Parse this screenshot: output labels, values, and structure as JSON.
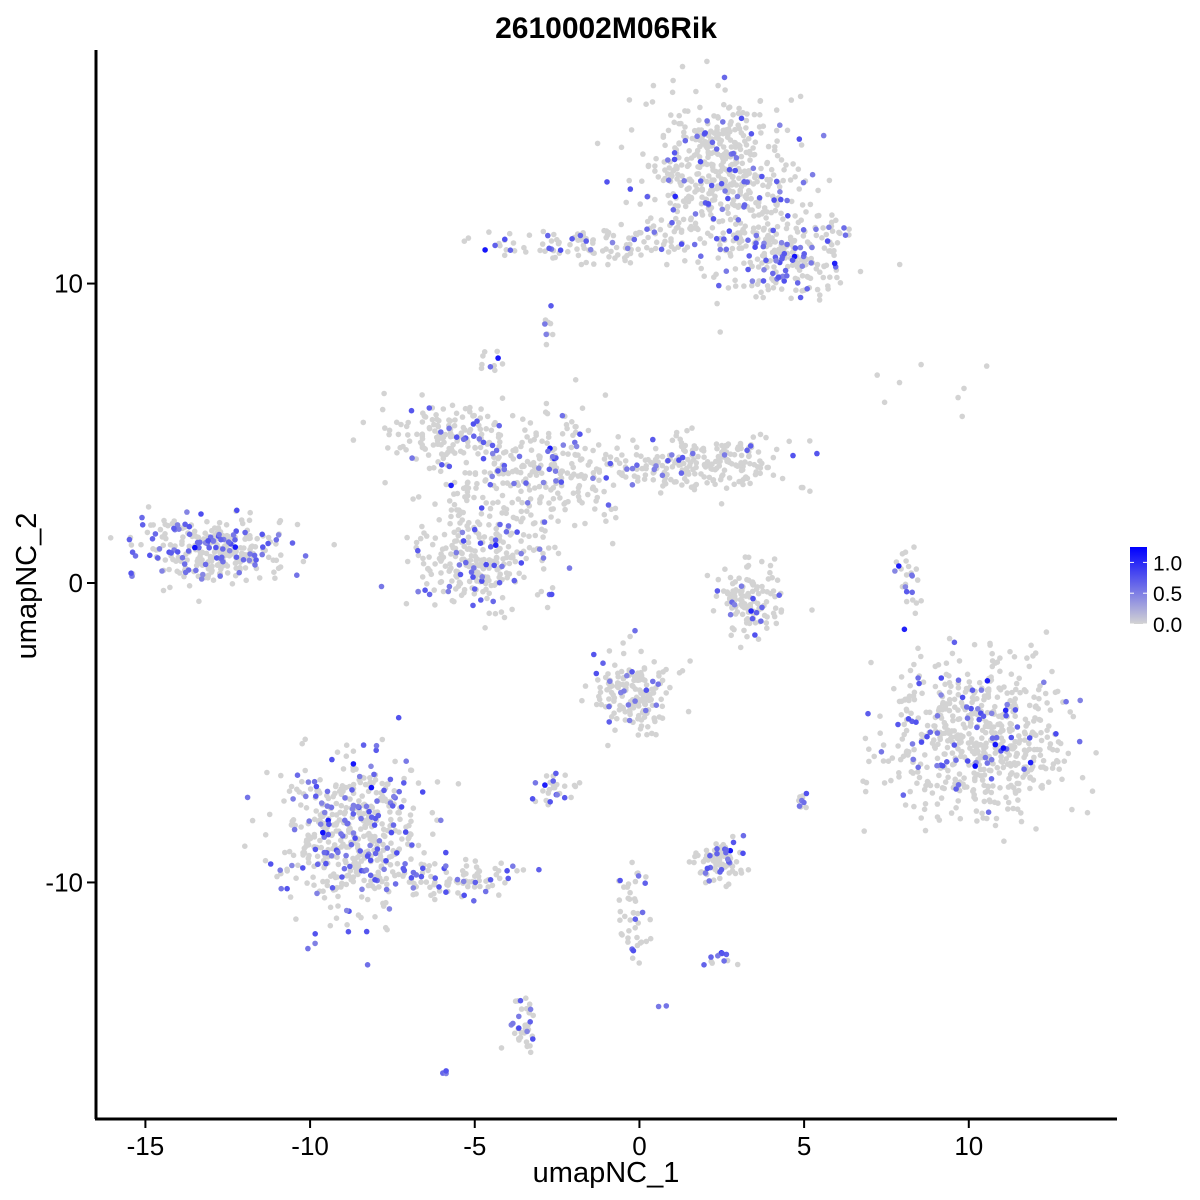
{
  "chart_data": {
    "type": "scatter",
    "title": "2610002M06Rik",
    "xlabel": "umapNC_1",
    "ylabel": "umapNC_2",
    "xlim": [
      -16.5,
      14.5
    ],
    "ylim": [
      -17.9,
      17.8
    ],
    "x_ticks": [
      -15,
      -10,
      -5,
      0,
      5,
      10
    ],
    "x_tick_labels": [
      "-15",
      "-10",
      "-5",
      "0",
      "5",
      "10"
    ],
    "y_ticks": [
      -10,
      0,
      10
    ],
    "y_tick_labels": [
      "-10",
      "0",
      "10"
    ],
    "grid": false,
    "legend": {
      "placement": "right",
      "type": "colorbar",
      "labels": [
        "1.0",
        "0.5",
        "0.0"
      ],
      "values": [
        1.0,
        0.5,
        0.0
      ],
      "max": 1.25
    },
    "colors": {
      "low": "#D3D3D3",
      "high": "#0000FF",
      "axis": "#000000"
    },
    "clusters": [
      {
        "name": "top-right",
        "cx": 2.6,
        "cy": 13.6,
        "sx": 1.2,
        "sy": 1.3,
        "n": 520,
        "frac": 0.12
      },
      {
        "name": "top-right-tail",
        "cx": 4.4,
        "cy": 11.0,
        "sx": 0.9,
        "sy": 0.8,
        "n": 220,
        "frac": 0.18
      },
      {
        "name": "top-arm",
        "cx": -1.0,
        "cy": 11.3,
        "sx": 1.9,
        "sy": 0.3,
        "n": 140,
        "frac": 0.15
      },
      {
        "name": "center-big",
        "cx": -3.0,
        "cy": 3.8,
        "sx": 1.6,
        "sy": 0.9,
        "n": 300,
        "frac": 0.14
      },
      {
        "name": "center-left-arm",
        "cx": -6.0,
        "cy": 5.0,
        "sx": 1.0,
        "sy": 0.5,
        "n": 130,
        "frac": 0.08
      },
      {
        "name": "center-right-arm",
        "cx": 1.8,
        "cy": 4.0,
        "sx": 1.3,
        "sy": 0.5,
        "n": 220,
        "frac": 0.1
      },
      {
        "name": "center-lower",
        "cx": -4.8,
        "cy": 0.8,
        "sx": 1.0,
        "sy": 0.9,
        "n": 280,
        "frac": 0.16
      },
      {
        "name": "far-left",
        "cx": -13.0,
        "cy": 1.1,
        "sx": 1.1,
        "sy": 0.55,
        "n": 300,
        "frac": 0.3
      },
      {
        "name": "bottom-left",
        "cx": -8.7,
        "cy": -8.4,
        "sx": 1.1,
        "sy": 1.3,
        "n": 520,
        "frac": 0.22
      },
      {
        "name": "bottom-left-tail",
        "cx": -5.6,
        "cy": -9.9,
        "sx": 1.0,
        "sy": 0.35,
        "n": 90,
        "frac": 0.2
      },
      {
        "name": "right-blob",
        "cx": 10.4,
        "cy": -5.1,
        "sx": 1.3,
        "sy": 1.3,
        "n": 620,
        "frac": 0.1
      },
      {
        "name": "center-small",
        "cx": 3.3,
        "cy": -0.6,
        "sx": 0.6,
        "sy": 0.6,
        "n": 130,
        "frac": 0.08
      },
      {
        "name": "mid-lower",
        "cx": -0.2,
        "cy": -3.8,
        "sx": 0.6,
        "sy": 0.7,
        "n": 170,
        "frac": 0.14
      },
      {
        "name": "bottom-mid-right",
        "cx": 2.4,
        "cy": -9.2,
        "sx": 0.4,
        "sy": 0.4,
        "n": 90,
        "frac": 0.2
      },
      {
        "name": "bottom-mid-left",
        "cx": -2.6,
        "cy": -6.9,
        "sx": 0.3,
        "sy": 0.25,
        "n": 30,
        "frac": 0.3
      },
      {
        "name": "bottom-stem",
        "cx": -0.2,
        "cy": -11.1,
        "sx": 0.25,
        "sy": 0.9,
        "n": 45,
        "frac": 0.3
      },
      {
        "name": "bottom-low",
        "cx": -3.5,
        "cy": -14.8,
        "sx": 0.2,
        "sy": 0.6,
        "n": 35,
        "frac": 0.35
      },
      {
        "name": "right-small-arc",
        "cx": 8.2,
        "cy": 0.4,
        "sx": 0.2,
        "sy": 0.6,
        "n": 25,
        "frac": 0.35
      },
      {
        "name": "right-blob-edge",
        "cx": 8.1,
        "cy": -4.5,
        "sx": 0.15,
        "sy": 0.4,
        "n": 15,
        "frac": 0.35
      },
      {
        "name": "lower-right-pair",
        "cx": 5.0,
        "cy": -7.3,
        "sx": 0.15,
        "sy": 0.15,
        "n": 10,
        "frac": 0.4
      },
      {
        "name": "small-top",
        "cx": -2.8,
        "cy": 8.6,
        "sx": 0.15,
        "sy": 0.3,
        "n": 10,
        "frac": 0.3
      },
      {
        "name": "small-top-center",
        "cx": -4.6,
        "cy": 7.4,
        "sx": 0.15,
        "sy": 0.2,
        "n": 10,
        "frac": 0.4
      },
      {
        "name": "bottom-isolated",
        "cx": -5.9,
        "cy": -16.3,
        "sx": 0.08,
        "sy": 0.08,
        "n": 3,
        "frac": 1.0
      },
      {
        "name": "bottom-center-dot",
        "cx": 0.7,
        "cy": -14.1,
        "sx": 0.06,
        "sy": 0.06,
        "n": 2,
        "frac": 1.0
      },
      {
        "name": "lower-small",
        "cx": 2.4,
        "cy": -12.5,
        "sx": 0.2,
        "sy": 0.2,
        "n": 12,
        "frac": 0.4
      },
      {
        "name": "far-right-scatter",
        "cx": 8.5,
        "cy": 6.5,
        "sx": 1.2,
        "sy": 0.6,
        "n": 8,
        "frac": 0.0
      }
    ]
  }
}
